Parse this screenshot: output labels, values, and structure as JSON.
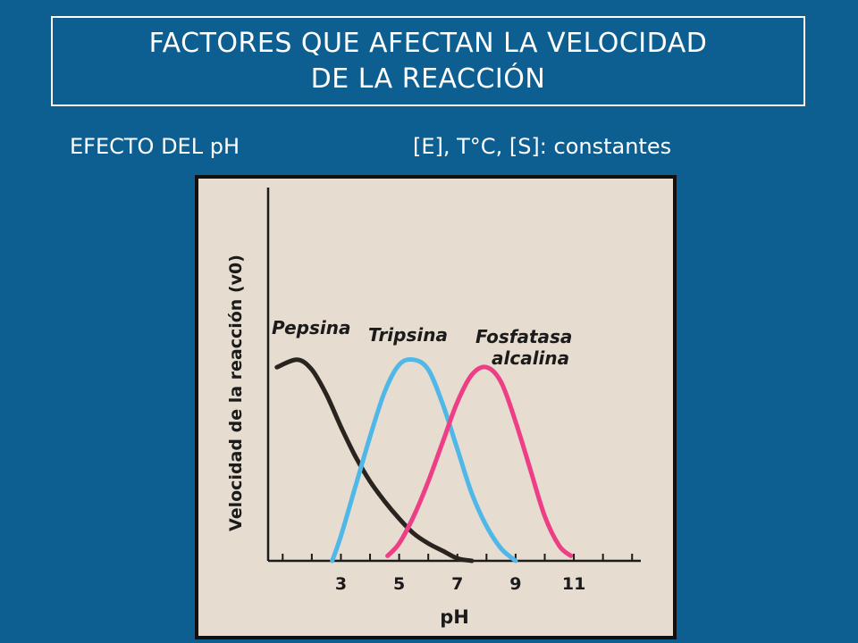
{
  "slide": {
    "title_line1": "FACTORES QUE AFECTAN LA VELOCIDAD",
    "title_line2": "DE LA REACCIÓN",
    "subtitle_left": "EFECTO DEL pH",
    "subtitle_right": "[E], T°C, [S]: constantes"
  },
  "colors": {
    "background": "#0e5f91",
    "paper": "#e6dccf",
    "pepsina": "#2a2420",
    "tripsina": "#4fb8e8",
    "fosfatasa": "#ee3f86"
  },
  "chart_data": {
    "type": "line",
    "xlabel": "pH",
    "ylabel": "Velocidad de la reacción (v0)",
    "x_ticks": [
      3,
      5,
      7,
      9,
      11
    ],
    "xlim": [
      0.5,
      13.3
    ],
    "ylim": [
      0,
      1
    ],
    "grid": false,
    "series": [
      {
        "name": "Pepsina",
        "label_lines": [
          "Pepsina"
        ],
        "x": [
          0.8,
          1.5,
          2.0,
          2.5,
          3.0,
          3.5,
          4.0,
          4.5,
          5.0,
          5.5,
          6.0,
          6.5,
          7.0,
          7.5
        ],
        "y": [
          0.78,
          0.81,
          0.77,
          0.67,
          0.54,
          0.42,
          0.32,
          0.24,
          0.17,
          0.11,
          0.07,
          0.04,
          0.01,
          0.0
        ]
      },
      {
        "name": "Tripsina",
        "label_lines": [
          "Tripsina"
        ],
        "x": [
          2.7,
          3.0,
          3.5,
          4.0,
          4.5,
          5.0,
          5.5,
          6.0,
          6.5,
          7.0,
          7.5,
          8.0,
          8.5,
          9.0
        ],
        "y": [
          0.0,
          0.1,
          0.3,
          0.5,
          0.68,
          0.79,
          0.81,
          0.77,
          0.63,
          0.45,
          0.27,
          0.14,
          0.05,
          0.0
        ]
      },
      {
        "name": "Fosfatasa alcalina",
        "label_lines": [
          "Fosfatasa",
          "alcalina"
        ],
        "x": [
          4.6,
          5.0,
          5.5,
          6.0,
          6.5,
          7.0,
          7.5,
          8.0,
          8.5,
          9.0,
          9.5,
          10.0,
          10.5,
          10.9
        ],
        "y": [
          0.02,
          0.07,
          0.18,
          0.32,
          0.48,
          0.64,
          0.75,
          0.78,
          0.72,
          0.56,
          0.37,
          0.18,
          0.06,
          0.02
        ]
      }
    ]
  }
}
